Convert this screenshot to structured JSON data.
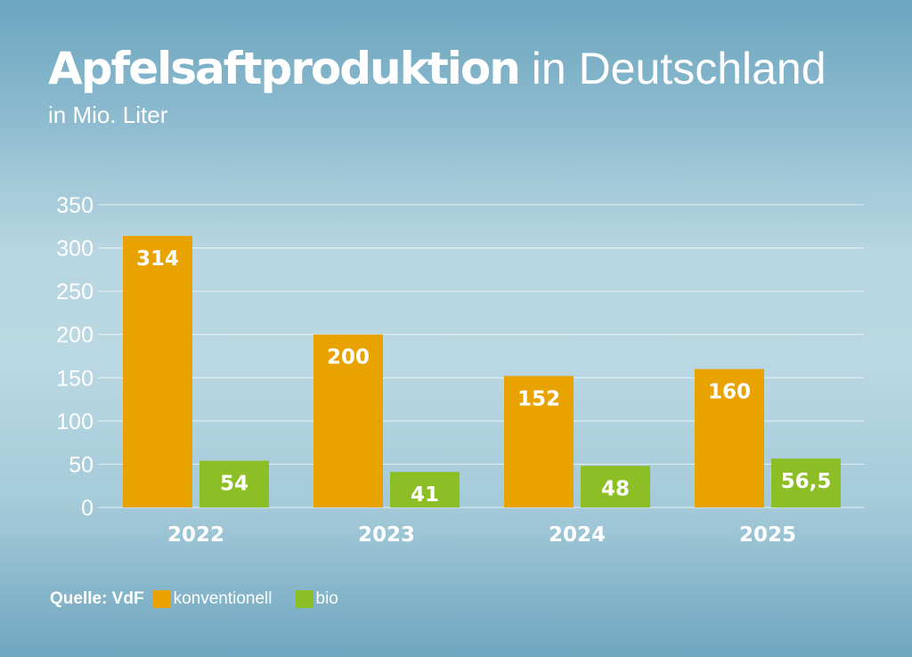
{
  "title_bold": "Apfelsaftproduktion",
  "title_light": " in Deutschland",
  "subtitle": "in Mio. Liter",
  "source": "Quelle: VdF",
  "colors": {
    "konventionell": "#e8a300",
    "bio": "#8cbf26"
  },
  "chart_data": {
    "type": "bar",
    "categories": [
      "2022",
      "2023",
      "2024",
      "2025"
    ],
    "series": [
      {
        "name": "konventionell",
        "values": [
          314,
          200,
          152,
          160
        ],
        "labels": [
          "314",
          "200",
          "152",
          "160"
        ]
      },
      {
        "name": "bio",
        "values": [
          54,
          41,
          48,
          56.5
        ],
        "labels": [
          "54",
          "41",
          "48",
          "56,5"
        ]
      }
    ],
    "ylim": [
      0,
      350
    ],
    "yticks": [
      0,
      50,
      100,
      150,
      200,
      250,
      300,
      350
    ],
    "grid": true,
    "legend": "bottom-left"
  }
}
